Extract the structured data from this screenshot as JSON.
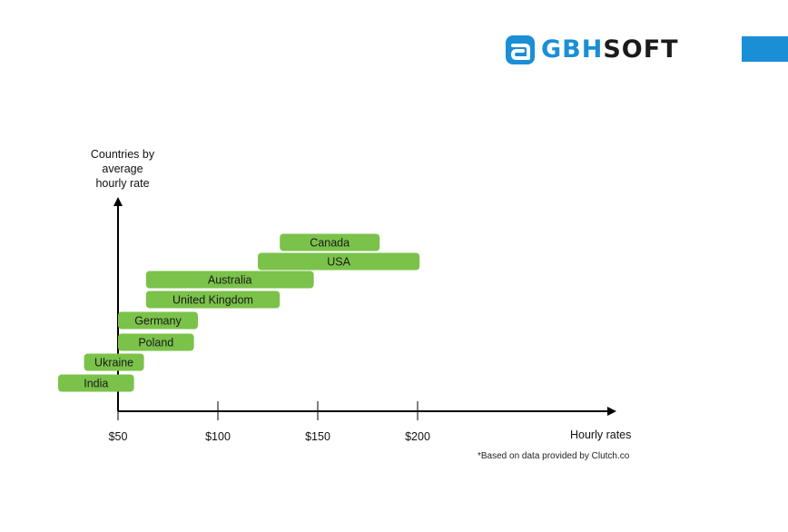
{
  "brand": {
    "logo_text_part1": "GBH",
    "logo_text_part2": "SOFT",
    "primary_color": "#1a8fd6",
    "text_color": "#1b1b1b"
  },
  "chart_data": {
    "type": "bar",
    "orientation": "horizontal-range",
    "ylabel": [
      "Countries by",
      "average",
      "hourly rate"
    ],
    "xlabel": "Hourly rates",
    "x_ticks": [
      "$50",
      "$100",
      "$150",
      "$200"
    ],
    "x_tick_values": [
      50,
      100,
      150,
      200
    ],
    "bar_color": "#7bc24a",
    "categories": [
      "India",
      "Ukraine",
      "Poland",
      "Germany",
      "United Kingdom",
      "Australia",
      "USA",
      "Canada"
    ],
    "ranges": [
      [
        20,
        58
      ],
      [
        33,
        63
      ],
      [
        50,
        88
      ],
      [
        50,
        90
      ],
      [
        64,
        131
      ],
      [
        64,
        148
      ],
      [
        120,
        201
      ],
      [
        131,
        181
      ]
    ],
    "footnote": "*Based on data provided by Clutch.co"
  }
}
